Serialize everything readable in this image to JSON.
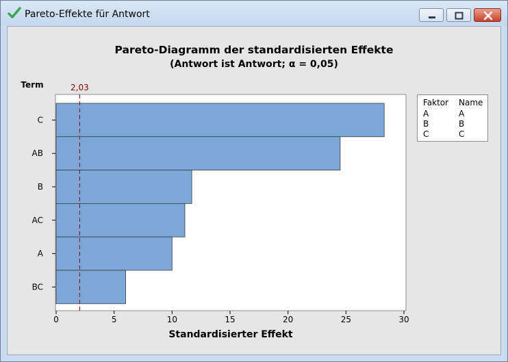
{
  "window": {
    "title": "Pareto-Effekte für Antwort"
  },
  "chart_data": {
    "type": "bar",
    "orientation": "horizontal",
    "title": "Pareto-Diagramm der standardisierten Effekte",
    "subtitle": "(Antwort ist Antwort; α = 0,05)",
    "xlabel": "Standardisierter Effekt",
    "ylabel": "Term",
    "categories": [
      "C",
      "AB",
      "B",
      "AC",
      "A",
      "BC"
    ],
    "values": [
      28.3,
      24.5,
      11.7,
      11.1,
      10.0,
      6.0
    ],
    "xlim": [
      0,
      30
    ],
    "xticks": [
      "0",
      "5",
      "10",
      "15",
      "20",
      "25",
      "30"
    ],
    "reference_line": {
      "value": 2.03,
      "label": "2,03",
      "color": "#8b0000"
    },
    "bar_color": "#7ba7d9",
    "grid": false
  },
  "legend": {
    "headers": [
      "Faktor",
      "Name"
    ],
    "rows": [
      [
        "A",
        "A"
      ],
      [
        "B",
        "B"
      ],
      [
        "C",
        "C"
      ]
    ]
  }
}
